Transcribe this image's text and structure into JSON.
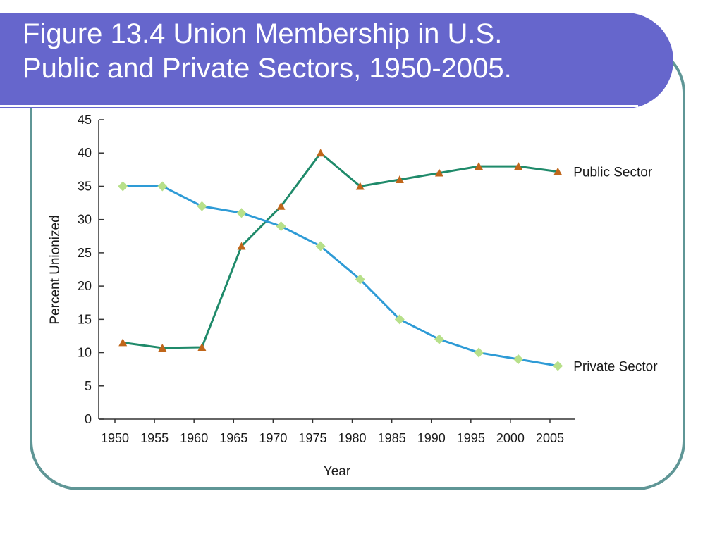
{
  "slide": {
    "title": "Figure 13.4  Union Membership in U.S.\nPublic and Private Sectors, 1950-2005."
  },
  "colors": {
    "title_bar": "#6666cc",
    "frame": "#5f9696",
    "public_line": "#1f8a6a",
    "public_marker": "#c0661a",
    "private_line": "#2e9bd6",
    "private_marker": "#b7e08a"
  },
  "chart_data": {
    "type": "line",
    "title": "",
    "xlabel": "Year",
    "ylabel": "Percent Unionized",
    "categories": [
      "1950",
      "1955",
      "1960",
      "1965",
      "1970",
      "1975",
      "1980",
      "1985",
      "1990",
      "1995",
      "2000",
      "2005"
    ],
    "yticks": [
      0,
      5,
      10,
      15,
      20,
      25,
      30,
      35,
      40,
      45
    ],
    "ylim": [
      0,
      45
    ],
    "grid": false,
    "legend": "inline labels at right end of each line",
    "series": [
      {
        "name": "Public Sector",
        "x": [
          1951,
          1956,
          1961,
          1966,
          1971,
          1976,
          1981,
          1986,
          1991,
          1996,
          2001,
          2006
        ],
        "values": [
          11.5,
          10.7,
          10.8,
          26,
          32,
          40,
          35,
          36,
          37,
          38,
          38,
          37.2
        ],
        "marker": "triangle"
      },
      {
        "name": "Private Sector",
        "x": [
          1951,
          1956,
          1961,
          1966,
          1971,
          1976,
          1981,
          1986,
          1991,
          1996,
          2001,
          2006
        ],
        "values": [
          35,
          35,
          32,
          31,
          29,
          26,
          21,
          15,
          12,
          10,
          9,
          8
        ],
        "marker": "diamond"
      }
    ]
  }
}
